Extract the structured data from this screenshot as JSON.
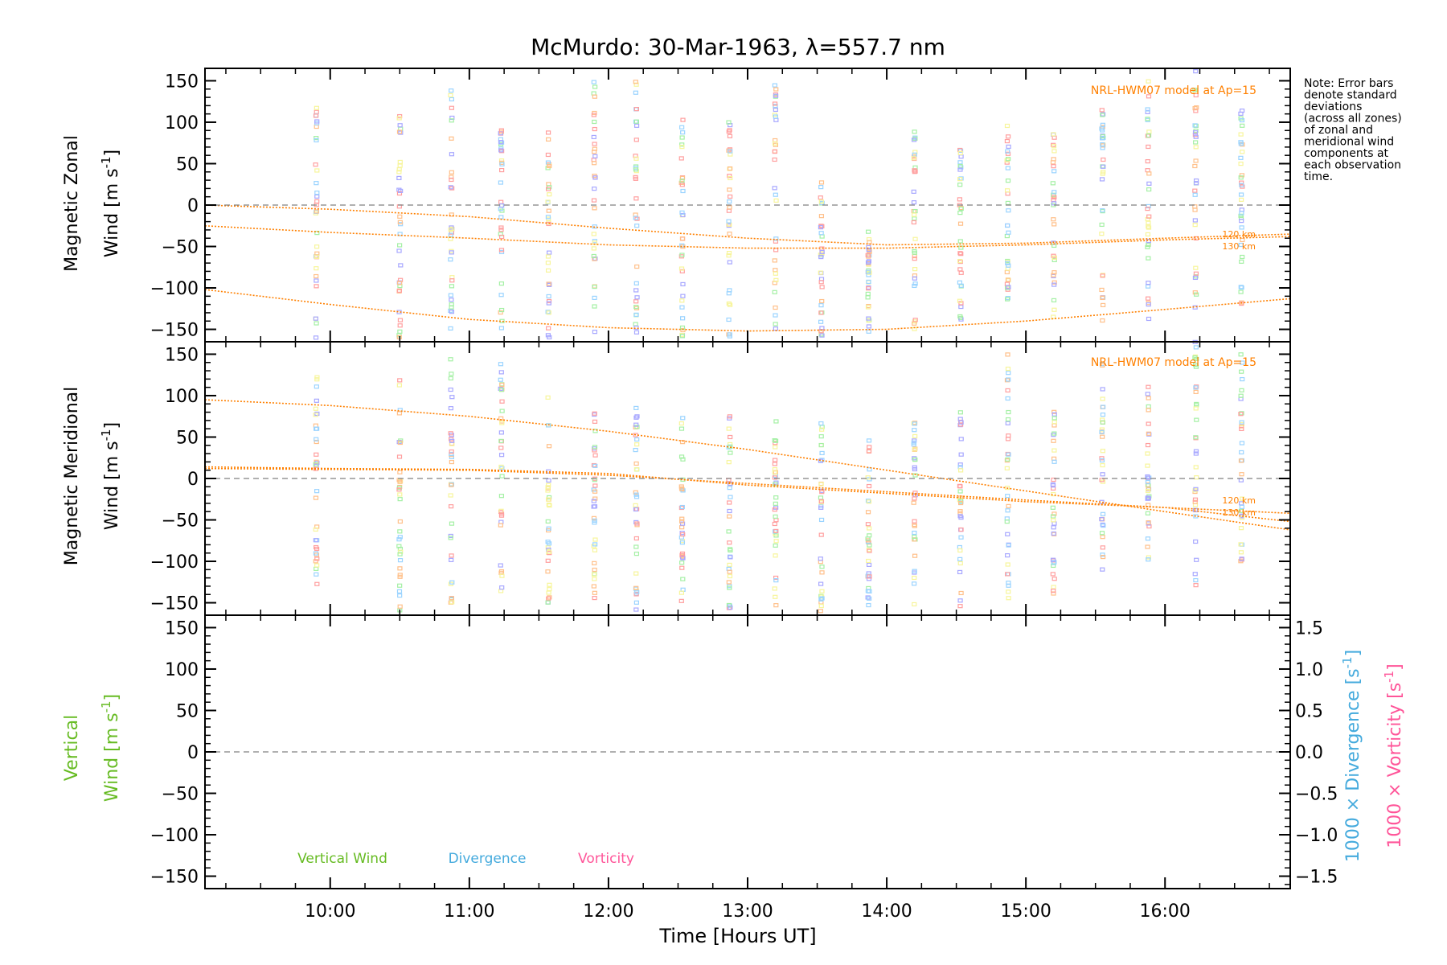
{
  "title": "McMurdo: 30-Mar-1963, λ=557.7 nm",
  "note_lines": [
    "Note: Error bars",
    "denote standard",
    "deviations",
    "(across all zones)",
    "of zonal and",
    "meridional wind",
    "components at",
    "each observation",
    "time."
  ],
  "colors": {
    "axis": "#000000",
    "model": "#ff8000",
    "zero_line": "#808080",
    "vertical": "#66bb22",
    "divergence": "#44aadd",
    "vorticity": "#ff5599",
    "scatter": [
      "#9bd4ff",
      "#a5f0a5",
      "#f7f59c",
      "#ffc08a",
      "#ff9f9f",
      "#a8a8ff"
    ]
  },
  "chart_data": [
    {
      "type": "scatter",
      "panel": "zonal",
      "ylabel_line1": "Magnetic Zonal",
      "ylabel_line2": "Wind [m s",
      "ylabel_sup": "-1",
      "ylabel_end": "]",
      "ylim": [
        -165,
        165
      ],
      "xlim": [
        9.1,
        16.9
      ],
      "yticks": [
        -150,
        -100,
        -50,
        0,
        50,
        100,
        150
      ],
      "ytick_labels": [
        "−150",
        "−100",
        "−50",
        "0",
        "50",
        "100",
        "150"
      ],
      "model_label": "NRL-HWM07 model at Ap=15",
      "model_series": [
        {
          "name": "120 km",
          "x": [
            9.1,
            10,
            11,
            12,
            13,
            14,
            15,
            16,
            16.9
          ],
          "y": [
            0,
            -5,
            -14,
            -28,
            -40,
            -48,
            -46,
            -40,
            -35
          ]
        },
        {
          "name": "130 km",
          "x": [
            9.1,
            10,
            11,
            12,
            13,
            14,
            15,
            16,
            16.9
          ],
          "y": [
            -25,
            -33,
            -40,
            -48,
            -52,
            -52,
            -48,
            -42,
            -38
          ]
        },
        {
          "name": "",
          "x": [
            9.1,
            10,
            11,
            12,
            13,
            14,
            15,
            16,
            16.9
          ],
          "y": [
            -102,
            -120,
            -138,
            -148,
            -152,
            -150,
            -140,
            -126,
            -113
          ]
        }
      ],
      "model_end_labels": [
        "120 km",
        "130 km"
      ],
      "obs_times": [
        9.9,
        10.5,
        10.87,
        11.23,
        11.57,
        11.9,
        12.2,
        12.53,
        12.87,
        13.2,
        13.53,
        13.87,
        14.2,
        14.53,
        14.87,
        15.2,
        15.55,
        15.88,
        16.22,
        16.55
      ],
      "obs_ranges": [
        [
          -160,
          135
        ],
        [
          -160,
          120
        ],
        [
          -160,
          140
        ],
        [
          -160,
          100
        ],
        [
          -160,
          95
        ],
        [
          -160,
          150
        ],
        [
          -160,
          150
        ],
        [
          -160,
          110
        ],
        [
          -160,
          105
        ],
        [
          -160,
          160
        ],
        [
          -160,
          30
        ],
        [
          -155,
          -30
        ],
        [
          -150,
          90
        ],
        [
          -140,
          70
        ],
        [
          -140,
          100
        ],
        [
          -135,
          90
        ],
        [
          -140,
          120
        ],
        [
          -150,
          160
        ],
        [
          -130,
          165
        ],
        [
          -140,
          125
        ]
      ]
    },
    {
      "type": "scatter",
      "panel": "meridional",
      "ylabel_line1": "Magnetic Meridional",
      "ylabel_line2": "Wind [m s",
      "ylabel_sup": "-1",
      "ylabel_end": "]",
      "ylim": [
        -165,
        165
      ],
      "xlim": [
        9.1,
        16.9
      ],
      "yticks": [
        -150,
        -100,
        -50,
        0,
        50,
        100,
        150
      ],
      "ytick_labels": [
        "−150",
        "−100",
        "−50",
        "0",
        "50",
        "100",
        "150"
      ],
      "model_label": "NRL-HWM07 model at Ap=15",
      "model_series": [
        {
          "name": "120 km",
          "x": [
            9.1,
            10,
            11,
            12,
            13,
            14,
            15,
            16,
            16.9
          ],
          "y": [
            95,
            88,
            75,
            57,
            35,
            10,
            -15,
            -40,
            -62
          ]
        },
        {
          "name": "130 km",
          "x": [
            9.1,
            10,
            11,
            12,
            13,
            14,
            15,
            16,
            16.9
          ],
          "y": [
            14,
            12,
            11,
            6,
            -8,
            -18,
            -28,
            -35,
            -42
          ]
        },
        {
          "name": "",
          "x": [
            9.1,
            10,
            11,
            12,
            13,
            14,
            15,
            16,
            16.9
          ],
          "y": [
            12,
            11,
            10,
            4,
            -6,
            -16,
            -26,
            -35,
            -52
          ]
        }
      ],
      "model_end_labels": [
        "120 km",
        "130 km"
      ],
      "obs_times": [
        9.9,
        10.5,
        10.87,
        11.23,
        11.57,
        11.9,
        12.2,
        12.53,
        12.87,
        13.2,
        13.53,
        13.87,
        14.2,
        14.53,
        14.87,
        15.2,
        15.55,
        15.88,
        16.22,
        16.55
      ],
      "obs_ranges": [
        [
          -140,
          130
        ],
        [
          -160,
          120
        ],
        [
          -160,
          145
        ],
        [
          -160,
          140
        ],
        [
          -160,
          105
        ],
        [
          -160,
          95
        ],
        [
          -160,
          90
        ],
        [
          -160,
          75
        ],
        [
          -160,
          80
        ],
        [
          -160,
          75
        ],
        [
          -160,
          75
        ],
        [
          -160,
          60
        ],
        [
          -160,
          70
        ],
        [
          -160,
          95
        ],
        [
          -160,
          150
        ],
        [
          -145,
          95
        ],
        [
          -115,
          155
        ],
        [
          -100,
          135
        ],
        [
          -130,
          165
        ],
        [
          -110,
          150
        ]
      ]
    },
    {
      "type": "line",
      "panel": "vertical",
      "ylabel_line1": "Vertical",
      "ylabel_line2_a": "Wind ",
      "ylabel_line2_b": "[m s",
      "ylabel_sup": "-1",
      "ylabel_end": "]",
      "ylim": [
        -165,
        165
      ],
      "xlim": [
        9.1,
        16.9
      ],
      "yticks": [
        -150,
        -100,
        -50,
        0,
        50,
        100,
        150
      ],
      "ytick_labels": [
        "−150",
        "−100",
        "−50",
        "0",
        "50",
        "100",
        "150"
      ],
      "right_ylim": [
        -1.65,
        1.65
      ],
      "right_yticks": [
        -1.5,
        -1.0,
        -0.5,
        0.0,
        0.5,
        1.0,
        1.5
      ],
      "right_ytick_labels": [
        "−1.5",
        "−1.0",
        "−0.5",
        "0.0",
        "0.5",
        "1.0",
        "1.5"
      ],
      "right_ylabel_div": "1000 × Divergence [s",
      "right_ylabel_vort": "1000 × Vorticity [s",
      "right_ylabel_sup": "-1",
      "right_ylabel_end": "]",
      "legend": [
        "Vertical Wind",
        "Divergence",
        "Vorticity"
      ],
      "xticks": [
        10,
        11,
        12,
        13,
        14,
        15,
        16
      ],
      "xtick_labels": [
        "10:00",
        "11:00",
        "12:00",
        "13:00",
        "14:00",
        "15:00",
        "16:00"
      ],
      "xlabel": "Time [Hours UT]",
      "series": []
    }
  ]
}
